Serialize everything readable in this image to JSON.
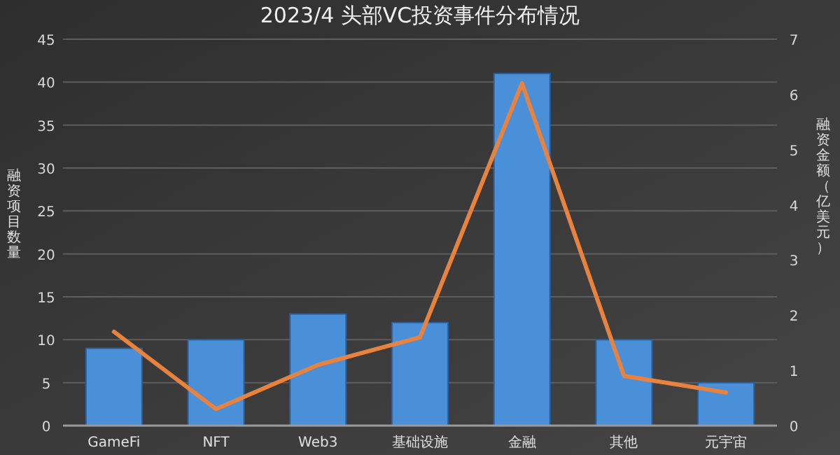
{
  "chart_data": {
    "type": "bar",
    "title": "2023/4 头部VC投资事件分布情况",
    "ylabel": "融资项目数量",
    "y2label": "融资金额（亿美元）",
    "categories": [
      "GameFi",
      "NFT",
      "Web3",
      "基础设施",
      "金融",
      "其他",
      "元宇宙"
    ],
    "series": [
      {
        "color": "#4a90d9",
        "values": [
          9,
          10,
          13,
          12,
          41,
          10,
          5
        ]
      },
      {
        "type": "line",
        "axis": "y2",
        "color": "#e8823f",
        "values": [
          1.7,
          0.3,
          1.1,
          1.6,
          6.2,
          0.9,
          0.6
        ]
      }
    ],
    "ylim": [
      0,
      45
    ],
    "yticks": [
      0,
      5,
      10,
      15,
      20,
      25,
      30,
      35,
      40,
      45
    ],
    "y2lim": [
      0,
      7
    ],
    "y2ticks": [
      0,
      1,
      2,
      3,
      4,
      5,
      6,
      7
    ],
    "grid": "y"
  }
}
